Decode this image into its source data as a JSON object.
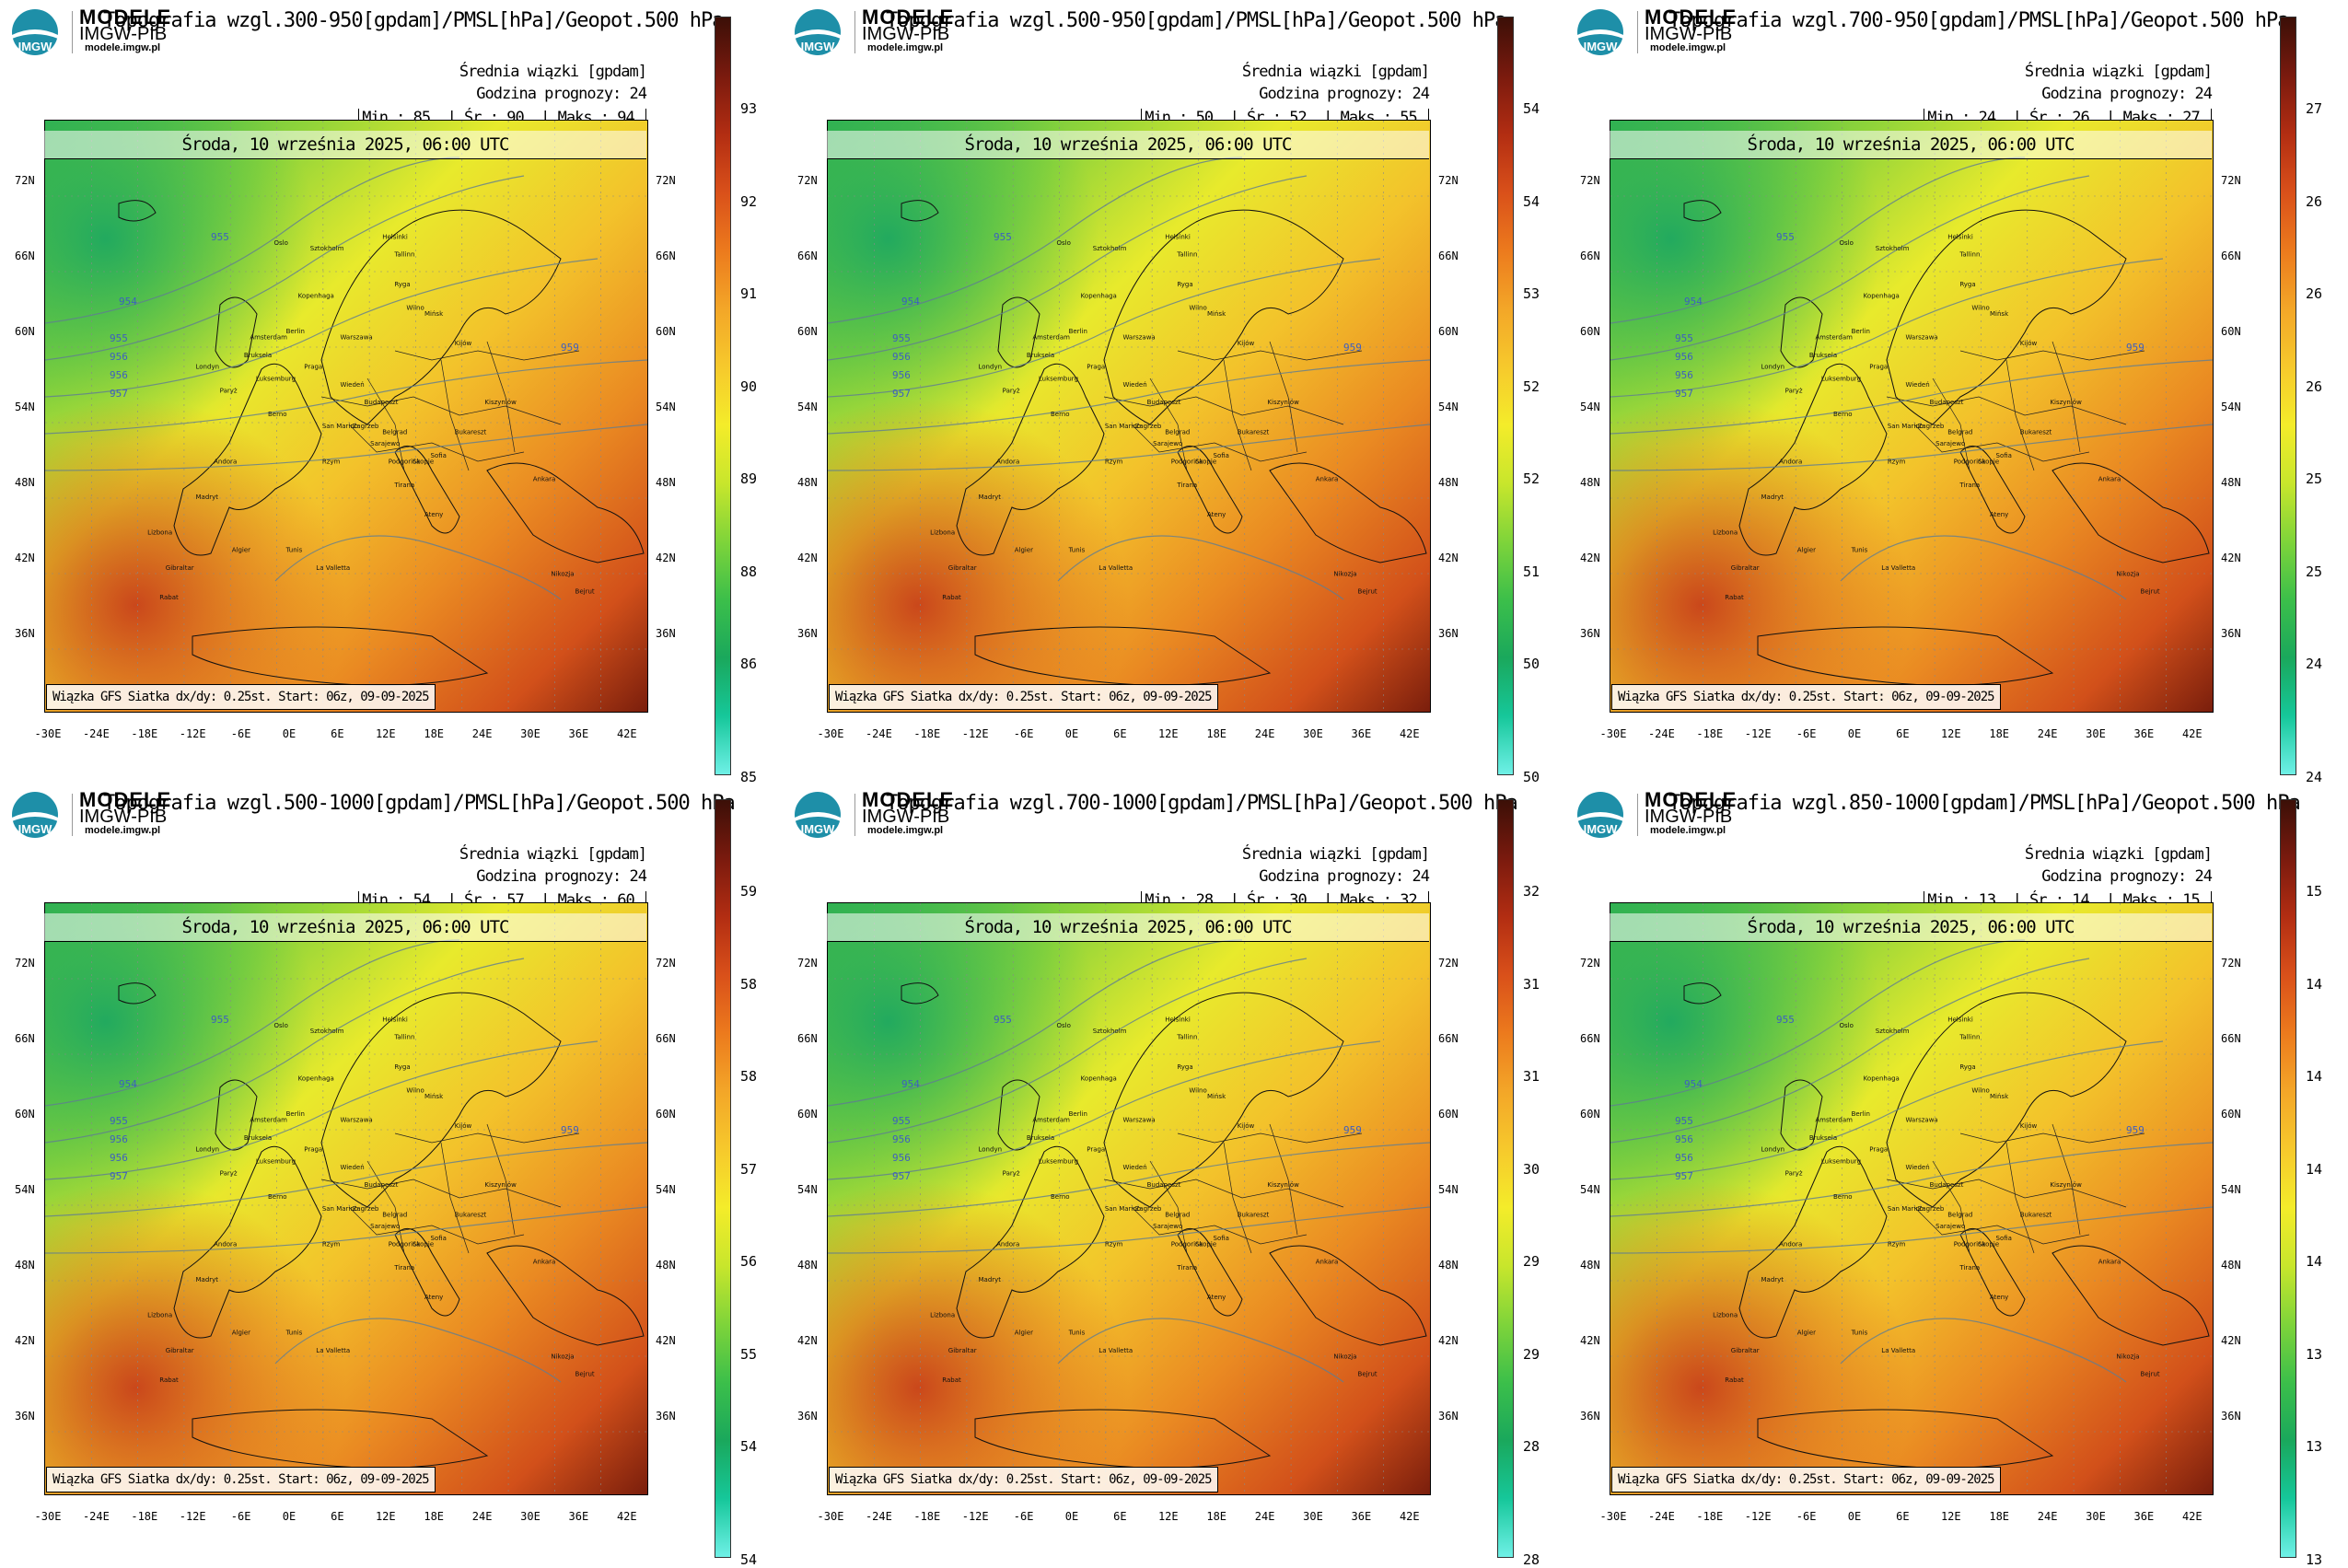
{
  "brand": {
    "line1": "MODELE",
    "line2": "IMGW-PIB",
    "site": "modele.imgw.pl",
    "logo_text": "IMGW"
  },
  "common": {
    "mean_label": "Średnia wiązki [gpdam]",
    "forecast_hour": "Godzina prognozy: 24",
    "date": "Środa, 10 września 2025, 06:00 UTC",
    "credit": "Wiązka GFS Siatka dx/dy: 0.25st. Start: 06z, 09-09-2025",
    "stat_min": "Min.:",
    "stat_mean": "Śr.:",
    "stat_max": "Maks.:",
    "lat_labels": [
      "72N",
      "66N",
      "60N",
      "54N",
      "48N",
      "42N",
      "36N"
    ],
    "lon_labels": [
      "-30E",
      "-24E",
      "-18E",
      "-12E",
      "-6E",
      "0E",
      "6E",
      "12E",
      "18E",
      "24E",
      "30E",
      "36E",
      "42E"
    ]
  },
  "panels": [
    {
      "title": "Topografia wzgl.300-950[gpdam]/PMSL[hPa]/Geopot.500 hPa",
      "min": "85.",
      "mean": "90.",
      "max": "94.",
      "cbar": [
        "93",
        "92",
        "91",
        "90",
        "89",
        "88",
        "86",
        "85"
      ]
    },
    {
      "title": "Topografia wzgl.500-950[gpdam]/PMSL[hPa]/Geopot.500 hPa",
      "min": "50.",
      "mean": "52.",
      "max": "55.",
      "cbar": [
        "54",
        "54",
        "53",
        "52",
        "52",
        "51",
        "50",
        "50"
      ]
    },
    {
      "title": "Topografia wzgl.700-950[gpdam]/PMSL[hPa]/Geopot.500 hPa",
      "min": "24.",
      "mean": "26.",
      "max": "27.",
      "cbar": [
        "27",
        "26",
        "26",
        "26",
        "25",
        "25",
        "24",
        "24"
      ]
    },
    {
      "title": "Topografia wzgl.500-1000[gpdam]/PMSL[hPa]/Geopot.500 hPa",
      "min": "54.",
      "mean": "57.",
      "max": "60.",
      "cbar": [
        "59",
        "58",
        "58",
        "57",
        "56",
        "55",
        "54",
        "54"
      ]
    },
    {
      "title": "Topografia wzgl.700-1000[gpdam]/PMSL[hPa]/Geopot.500 hPa",
      "min": "28.",
      "mean": "30.",
      "max": "32.",
      "cbar": [
        "32",
        "31",
        "31",
        "30",
        "29",
        "29",
        "28",
        "28"
      ]
    },
    {
      "title": "Topografia wzgl.850-1000[gpdam]/PMSL[hPa]/Geopot.500 hPa",
      "min": "13.",
      "mean": "14.",
      "max": "15.",
      "cbar": [
        "15",
        "14",
        "14",
        "14",
        "14",
        "13",
        "13",
        "13"
      ]
    }
  ],
  "isolines": [
    "955",
    "956",
    "957",
    "954",
    "959"
  ],
  "cities": [
    "Londyn",
    "Paryż",
    "Berlin",
    "Warszawa",
    "Oslo",
    "Sztokholm",
    "Helsinki",
    "Tallinn",
    "Ryga",
    "Wilno",
    "Mińsk",
    "Kijów",
    "Praga",
    "Wiedeń",
    "Budapeszt",
    "Bukareszt",
    "Belgrad",
    "Sofia",
    "Ateny",
    "Rzym",
    "Madryt",
    "Lizbona",
    "Algier",
    "Tunis",
    "Ankara",
    "Kopenhaga",
    "Amsterdam",
    "Bruksela",
    "Luksemburg",
    "Berno",
    "Zagrzeb",
    "Sarajewo",
    "Skopje",
    "Tirana",
    "Podgorica",
    "Kiszyniów",
    "Gibraltar",
    "Rabat",
    "La Valletta",
    "Nikozja",
    "Andora",
    "San Marino",
    "Bejrut"
  ],
  "colors": {
    "cbar_gradient": [
      "#3b0f07",
      "#7a1a0e",
      "#b22d12",
      "#d9501a",
      "#ec7a1d",
      "#f3a628",
      "#f6c92c",
      "#f4ec2a",
      "#c8e62c",
      "#7fd43a",
      "#3cbf4a",
      "#1aa85c",
      "#16c79a",
      "#6ff0e6"
    ]
  }
}
